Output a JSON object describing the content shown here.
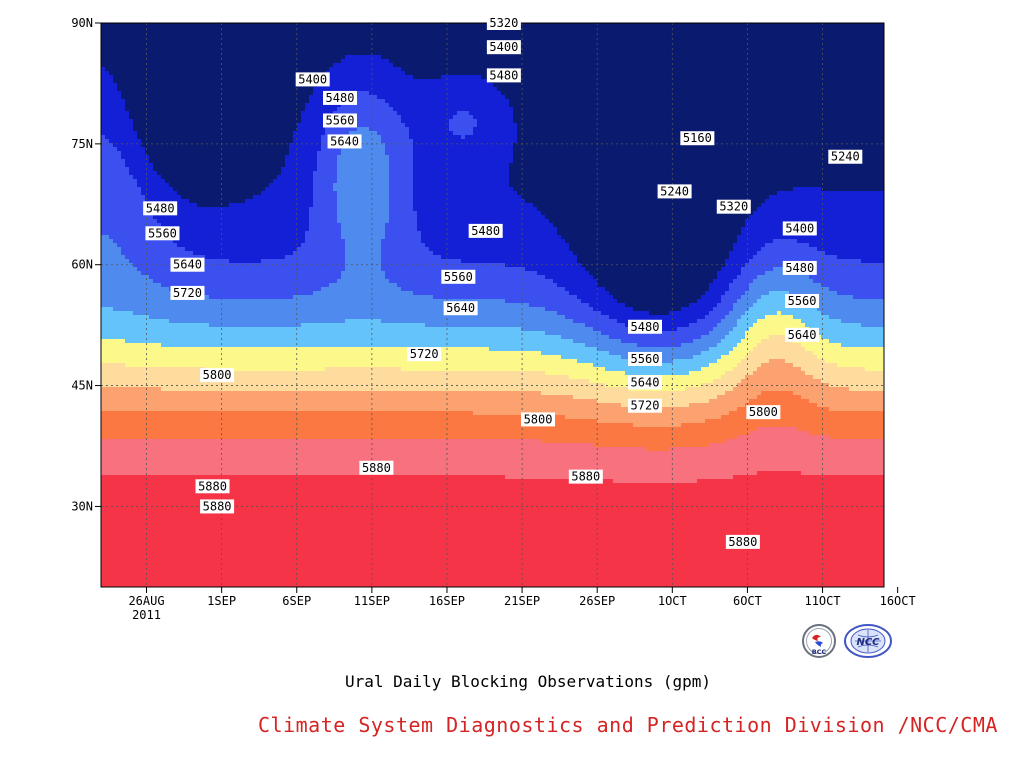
{
  "chart_data": {
    "type": "heatmap",
    "title": "",
    "xlabel": "",
    "ylabel": "",
    "x_tick_labels": [
      "26AUG",
      "1SEP",
      "6SEP",
      "11SEP",
      "16SEP",
      "21SEP",
      "26SEP",
      "1OCT",
      "6OCT",
      "11OCT",
      "16OCT"
    ],
    "x_year_label": "2011",
    "y_tick_labels": [
      "30N",
      "45N",
      "60N",
      "75N",
      "90N"
    ],
    "y_ticks_deg": [
      30,
      45,
      60,
      75,
      90
    ],
    "ylim": [
      20,
      90
    ],
    "grid": true,
    "contour_levels": [
      5160,
      5240,
      5320,
      5400,
      5480,
      5560,
      5640,
      5720,
      5800,
      5880
    ],
    "level_colors": [
      "#0a1a6e",
      "#1420d6",
      "#3c50f0",
      "#4f8bee",
      "#64c3fb",
      "#fcf98a",
      "#fddc9e",
      "#fca170",
      "#fb7842",
      "#f8717e",
      "#f53447"
    ],
    "contour_labels": [
      {
        "value": "5320",
        "day": 17.7,
        "lat": 90.0
      },
      {
        "value": "5400",
        "day": 17.7,
        "lat": 87.0
      },
      {
        "value": "5480",
        "day": 17.7,
        "lat": 83.5
      },
      {
        "value": "5400",
        "day": 9.3,
        "lat": 83.0
      },
      {
        "value": "5480",
        "day": 10.5,
        "lat": 80.7
      },
      {
        "value": "5560",
        "day": 10.5,
        "lat": 77.9
      },
      {
        "value": "5640",
        "day": 10.7,
        "lat": 75.3
      },
      {
        "value": "5160",
        "day": 26.2,
        "lat": 75.7
      },
      {
        "value": "5240",
        "day": 32.7,
        "lat": 73.4
      },
      {
        "value": "5480",
        "day": 2.6,
        "lat": 67.0
      },
      {
        "value": "5240",
        "day": 25.2,
        "lat": 69.1
      },
      {
        "value": "5320",
        "day": 27.8,
        "lat": 67.2
      },
      {
        "value": "5560",
        "day": 2.7,
        "lat": 63.9
      },
      {
        "value": "5480",
        "day": 16.9,
        "lat": 64.2
      },
      {
        "value": "5400",
        "day": 30.7,
        "lat": 64.5
      },
      {
        "value": "5640",
        "day": 3.8,
        "lat": 60.0
      },
      {
        "value": "5480",
        "day": 30.7,
        "lat": 59.6
      },
      {
        "value": "5560",
        "day": 15.7,
        "lat": 58.5
      },
      {
        "value": "5720",
        "day": 3.8,
        "lat": 56.5
      },
      {
        "value": "5560",
        "day": 30.8,
        "lat": 55.5
      },
      {
        "value": "5640",
        "day": 15.8,
        "lat": 54.6
      },
      {
        "value": "5640",
        "day": 30.8,
        "lat": 51.3
      },
      {
        "value": "5480",
        "day": 23.9,
        "lat": 52.3
      },
      {
        "value": "5720",
        "day": 14.2,
        "lat": 48.9
      },
      {
        "value": "5560",
        "day": 23.9,
        "lat": 48.3
      },
      {
        "value": "5800",
        "day": 5.1,
        "lat": 46.3
      },
      {
        "value": "5640",
        "day": 23.9,
        "lat": 45.4
      },
      {
        "value": "5720",
        "day": 23.9,
        "lat": 42.5
      },
      {
        "value": "5800",
        "day": 29.1,
        "lat": 41.7
      },
      {
        "value": "5800",
        "day": 19.2,
        "lat": 40.8
      },
      {
        "value": "5880",
        "day": 12.1,
        "lat": 34.8
      },
      {
        "value": "5880",
        "day": 21.3,
        "lat": 33.7
      },
      {
        "value": "5880",
        "day": 4.9,
        "lat": 32.5
      },
      {
        "value": "5880",
        "day": 5.1,
        "lat": 30.0
      },
      {
        "value": "5880",
        "day": 28.2,
        "lat": 25.6
      }
    ]
  },
  "texts": {
    "subtitle": "Ural Daily Blocking Observations (gpm)",
    "credit": "Climate System Diagnostics and Prediction Division /NCC/CMA",
    "logo_bcc": "BCC",
    "logo_ncc": "NCC"
  },
  "colors": {
    "credit": "#d42424",
    "grid": "#555555",
    "contour_line": "#000000"
  }
}
